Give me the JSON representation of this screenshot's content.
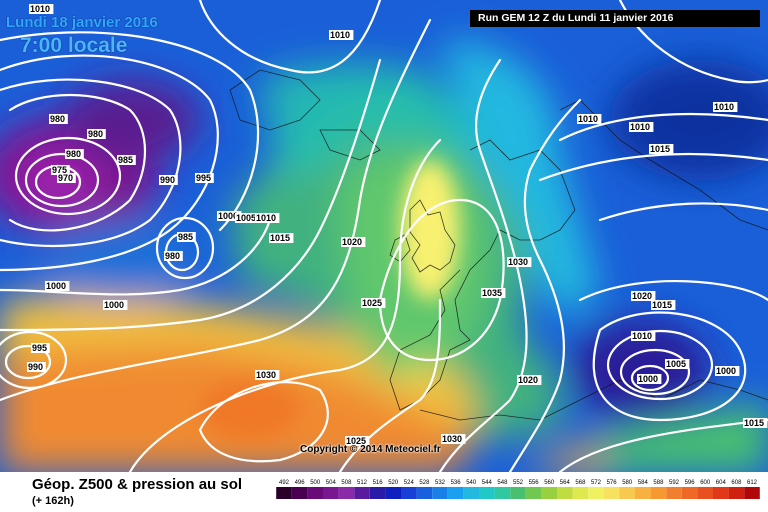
{
  "header": {
    "date": "Lundi 18 janvier 2016",
    "time": "7:00 locale",
    "run": "Run GEM 12 Z du Lundi 11 janvier 2016"
  },
  "copyright": "Copyright © 2014 Meteociel.fr",
  "footer": {
    "title": "Géop. Z500 & pression au sol",
    "subtitle": "(+ 162h)"
  },
  "colors": {
    "deep_low": "#7a1690",
    "blue": "#1860d8",
    "cyan": "#22b8e0",
    "green": "#48c070",
    "yellow": "#f0f060",
    "orange": "#f08a30",
    "isobar": "#ffffff"
  },
  "pressure_labels": [
    {
      "text": "1010"
    },
    {
      "text": "1010"
    },
    {
      "text": "980"
    },
    {
      "text": "980"
    },
    {
      "text": "980"
    },
    {
      "text": "985"
    },
    {
      "text": "975"
    },
    {
      "text": "970"
    },
    {
      "text": "990"
    },
    {
      "text": "995"
    },
    {
      "text": "1000"
    },
    {
      "text": "1005"
    },
    {
      "text": "1010"
    },
    {
      "text": "985"
    },
    {
      "text": "980"
    },
    {
      "text": "1015"
    },
    {
      "text": "1020"
    },
    {
      "text": "1000"
    },
    {
      "text": "1000"
    },
    {
      "text": "995"
    },
    {
      "text": "990"
    },
    {
      "text": "1025"
    },
    {
      "text": "1030"
    },
    {
      "text": "1025"
    },
    {
      "text": "1030"
    },
    {
      "text": "1030"
    },
    {
      "text": "1035"
    },
    {
      "text": "1020"
    },
    {
      "text": "1010"
    },
    {
      "text": "1010"
    },
    {
      "text": "1015"
    },
    {
      "text": "1010"
    },
    {
      "text": "1020"
    },
    {
      "text": "1015"
    },
    {
      "text": "1010"
    },
    {
      "text": "1005"
    },
    {
      "text": "1000"
    },
    {
      "text": "1000"
    },
    {
      "text": "1015"
    }
  ],
  "scale": {
    "values": [
      "492",
      "496",
      "500",
      "504",
      "508",
      "512",
      "516",
      "520",
      "524",
      "528",
      "532",
      "536",
      "540",
      "544",
      "548",
      "552",
      "556",
      "560",
      "564",
      "568",
      "572",
      "576",
      "580",
      "584",
      "588",
      "592",
      "596",
      "600",
      "604",
      "608",
      "612"
    ],
    "colors": [
      "#2a002a",
      "#4a0050",
      "#6a0a78",
      "#7a1690",
      "#8a2aa8",
      "#5a1aa0",
      "#2a1aa8",
      "#1020c0",
      "#1840d8",
      "#1860e0",
      "#1a80e8",
      "#1aa0f0",
      "#22b8e0",
      "#20c8c8",
      "#30c8a0",
      "#48c070",
      "#70c850",
      "#98d040",
      "#c0dc40",
      "#e0e850",
      "#f0f060",
      "#f8e060",
      "#f8c850",
      "#f8b040",
      "#f89830",
      "#f08030",
      "#f06828",
      "#e85020",
      "#e03818",
      "#d02010",
      "#b00808"
    ]
  }
}
